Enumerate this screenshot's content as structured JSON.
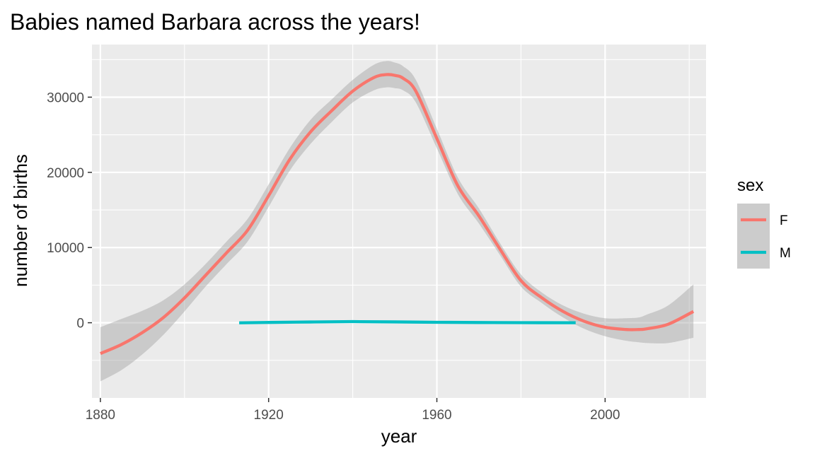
{
  "chart_data": {
    "type": "line",
    "title": "Babies named Barbara across the years!",
    "xlabel": "year",
    "ylabel": "number of births",
    "xlim": [
      1878,
      2024
    ],
    "ylim": [
      -10000,
      37000
    ],
    "x_ticks": [
      1880,
      1920,
      1960,
      2000
    ],
    "y_ticks": [
      0,
      10000,
      20000,
      30000
    ],
    "grid": true,
    "background": "#ebebeb",
    "legend": {
      "title": "sex",
      "placement": "right"
    },
    "series": [
      {
        "name": "F",
        "color": "#f8766d",
        "x": [
          1880,
          1885,
          1890,
          1895,
          1900,
          1905,
          1910,
          1915,
          1920,
          1925,
          1930,
          1935,
          1940,
          1945,
          1948,
          1950,
          1952,
          1955,
          1960,
          1965,
          1970,
          1975,
          1980,
          1985,
          1990,
          1995,
          2000,
          2005,
          2008,
          2010,
          2015,
          2021
        ],
        "y": [
          -4100,
          -2900,
          -1300,
          700,
          3300,
          6300,
          9300,
          12300,
          16900,
          21700,
          25400,
          28200,
          30800,
          32600,
          33000,
          32900,
          32500,
          30800,
          24500,
          18200,
          14200,
          9800,
          5600,
          3300,
          1500,
          200,
          -600,
          -900,
          -900,
          -800,
          -200,
          1500
        ],
        "ci_lower": [
          -7800,
          -6300,
          -4200,
          -1600,
          1500,
          4800,
          7800,
          10800,
          15400,
          20200,
          23800,
          26700,
          29300,
          30900,
          31300,
          31200,
          30900,
          29300,
          23200,
          17100,
          13200,
          9000,
          4800,
          2600,
          700,
          -800,
          -1800,
          -2400,
          -2600,
          -2700,
          -2700,
          -2000
        ],
        "ci_upper": [
          -600,
          500,
          1600,
          3000,
          5100,
          7800,
          10800,
          13800,
          18400,
          23200,
          27000,
          29700,
          32300,
          34300,
          34800,
          34600,
          34100,
          32300,
          25800,
          19300,
          15200,
          10600,
          6400,
          4000,
          2300,
          1200,
          600,
          600,
          700,
          1100,
          2300,
          5100
        ]
      },
      {
        "name": "M",
        "color": "#00bfc4",
        "x": [
          1913,
          1920,
          1930,
          1940,
          1950,
          1960,
          1970,
          1980,
          1993
        ],
        "y": [
          -10,
          40,
          100,
          150,
          110,
          60,
          30,
          10,
          0
        ]
      }
    ]
  }
}
